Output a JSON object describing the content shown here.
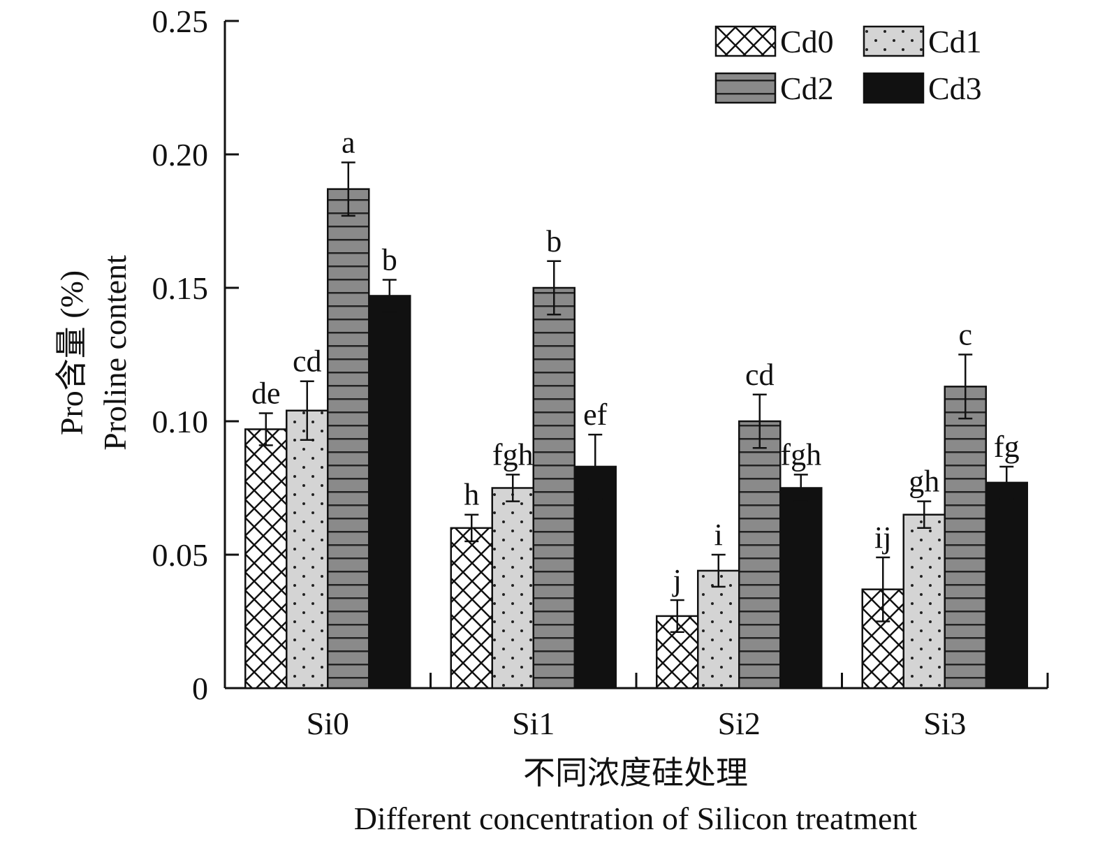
{
  "chart_data": {
    "type": "bar",
    "title": "",
    "ylabel_lines": [
      "Pro含量 (%)",
      "Proline content"
    ],
    "xlabel_lines": [
      "不同浓度硅处理",
      "Different concentration of Silicon treatment"
    ],
    "categories": [
      "Si0",
      "Si1",
      "Si2",
      "Si3"
    ],
    "ylim": [
      0,
      0.25
    ],
    "yticks": [
      0,
      0.05,
      0.1,
      0.15,
      0.2,
      0.25
    ],
    "ytick_labels": [
      "0",
      "0.05",
      "0.10",
      "0.15",
      "0.20",
      "0.25"
    ],
    "legend_position": "top-right",
    "grid": false,
    "series": [
      {
        "name": "Cd0",
        "fill": "crosshatch",
        "values": [
          0.097,
          0.06,
          0.027,
          0.037
        ],
        "errors": [
          0.006,
          0.005,
          0.006,
          0.012
        ],
        "labels": [
          "de",
          "h",
          "j",
          "ij"
        ]
      },
      {
        "name": "Cd1",
        "fill": "dots",
        "values": [
          0.104,
          0.075,
          0.044,
          0.065
        ],
        "errors": [
          0.011,
          0.005,
          0.006,
          0.005
        ],
        "labels": [
          "cd",
          "fgh",
          "i",
          "gh"
        ]
      },
      {
        "name": "Cd2",
        "fill": "horizontal-stripes",
        "values": [
          0.187,
          0.15,
          0.1,
          0.113
        ],
        "errors": [
          0.01,
          0.01,
          0.01,
          0.012
        ],
        "labels": [
          "a",
          "b",
          "cd",
          "c"
        ]
      },
      {
        "name": "Cd3",
        "fill": "solid-black",
        "values": [
          0.147,
          0.083,
          0.075,
          0.077
        ],
        "errors": [
          0.006,
          0.012,
          0.005,
          0.006
        ],
        "labels": [
          "b",
          "ef",
          "fgh",
          "fg"
        ]
      }
    ]
  }
}
